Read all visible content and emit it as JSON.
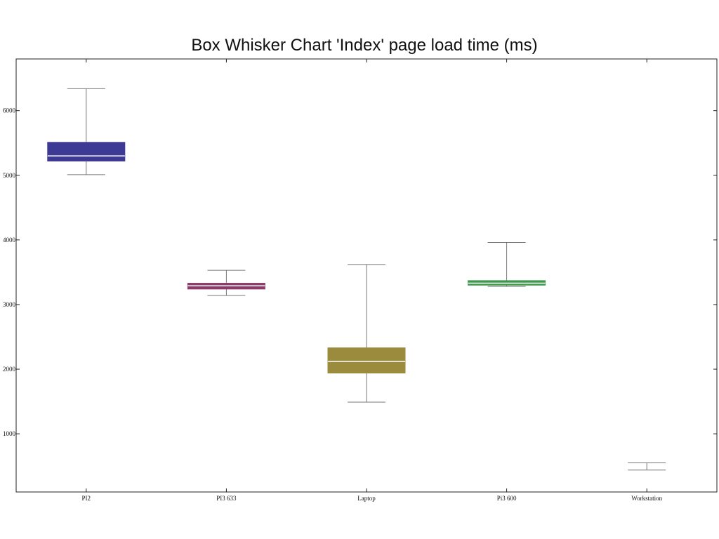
{
  "chart_data": {
    "type": "boxplot",
    "title": "Box Whisker Chart 'Index' page load time (ms)",
    "xlabel": "",
    "ylabel": "",
    "ylim": [
      100,
      6800
    ],
    "yticks": [
      1000,
      2000,
      3000,
      4000,
      5000,
      6000
    ],
    "ytick_labels": [
      "1000",
      "2000",
      "3000",
      "4000",
      "5000",
      "6000"
    ],
    "grid": false,
    "categories": [
      "PI2",
      "PI3 633",
      "Laptop",
      "Pi3 600",
      "Workstation"
    ],
    "boxes": [
      {
        "category": "PI2",
        "min": 5010,
        "q1": 5220,
        "median": 5300,
        "q3": 5510,
        "max": 6340,
        "color": "#3d3a96"
      },
      {
        "category": "PI3 633",
        "min": 3140,
        "q1": 3240,
        "median": 3290,
        "q3": 3330,
        "max": 3530,
        "color": "#8b3a6b"
      },
      {
        "category": "Laptop",
        "min": 1490,
        "q1": 1940,
        "median": 2120,
        "q3": 2330,
        "max": 3620,
        "color": "#9b8b3c"
      },
      {
        "category": "Pi3 600",
        "min": 3280,
        "q1": 3300,
        "median": 3330,
        "q3": 3370,
        "max": 3960,
        "color": "#3a9b4a"
      },
      {
        "category": "Workstation",
        "min": 440,
        "q1": 440,
        "median": 440,
        "q3": 440,
        "max": 550,
        "color": "#888888"
      }
    ]
  }
}
